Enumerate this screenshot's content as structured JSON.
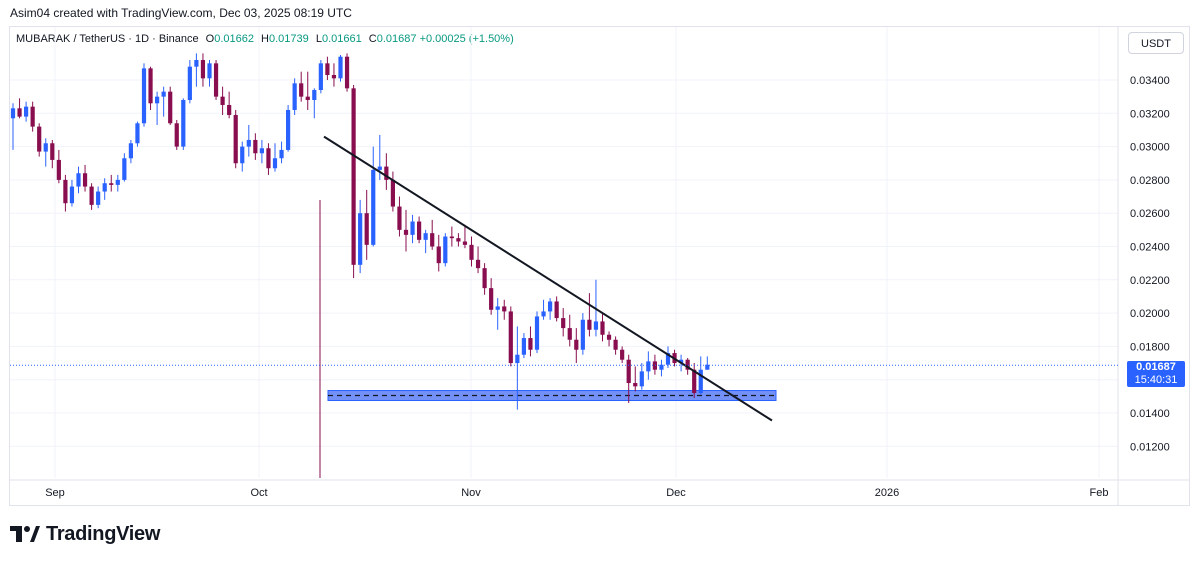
{
  "attribution": "Asim04 created with TradingView.com, Dec 03, 2025 08:19 UTC",
  "legend": {
    "symbol": "MUBARAK / TetherUS · 1D · Binance",
    "o_label": "O",
    "o_value": "0.01662",
    "h_label": "H",
    "h_value": "0.01739",
    "l_label": "L",
    "l_value": "0.01661",
    "c_label": "C",
    "c_value": "0.01687",
    "change": "+0.00025 (+1.50%)"
  },
  "currency_button": "USDT",
  "price_tag": {
    "price": "0.01687",
    "countdown": "15:40:31"
  },
  "logo_text": "TradingView",
  "colors": {
    "up": "#2962ff",
    "down": "#880e4f",
    "tag": "#2962ff",
    "support": "#5b7cf5"
  },
  "chart_data": {
    "type": "candlestick",
    "y_axis_ticks": [
      "0.03400",
      "0.03200",
      "0.03000",
      "0.02800",
      "0.02600",
      "0.02400",
      "0.02200",
      "0.02000",
      "0.01800",
      "0.01600",
      "0.01400",
      "0.01200"
    ],
    "x_axis_labels": [
      "Sep",
      "Oct",
      "Nov",
      "Dec",
      "2026",
      "Feb"
    ],
    "last_price": 0.01687,
    "support_zone": [
      0.01475,
      0.01535
    ],
    "support_line": 0.01505,
    "trendline": {
      "from": [
        0.0306
      ],
      "to": [
        0.01355
      ]
    },
    "candles": [
      [
        0.0317,
        0.0326,
        0.0298,
        0.0323
      ],
      [
        0.0323,
        0.0329,
        0.0317,
        0.0318
      ],
      [
        0.0318,
        0.0327,
        0.0315,
        0.0324
      ],
      [
        0.0324,
        0.0327,
        0.0309,
        0.0312
      ],
      [
        0.0312,
        0.0314,
        0.0294,
        0.0297
      ],
      [
        0.0297,
        0.0305,
        0.0288,
        0.0302
      ],
      [
        0.0302,
        0.0304,
        0.0287,
        0.0292
      ],
      [
        0.0292,
        0.0298,
        0.0278,
        0.028
      ],
      [
        0.028,
        0.0283,
        0.0261,
        0.0266
      ],
      [
        0.0266,
        0.028,
        0.0264,
        0.0276
      ],
      [
        0.0276,
        0.0288,
        0.0272,
        0.0284
      ],
      [
        0.0284,
        0.0289,
        0.0273,
        0.0276
      ],
      [
        0.0276,
        0.0278,
        0.0262,
        0.0265
      ],
      [
        0.0265,
        0.0276,
        0.0263,
        0.0273
      ],
      [
        0.0273,
        0.0281,
        0.0268,
        0.0278
      ],
      [
        0.0278,
        0.0283,
        0.0273,
        0.0277
      ],
      [
        0.0277,
        0.0283,
        0.0273,
        0.028
      ],
      [
        0.028,
        0.0296,
        0.0279,
        0.0293
      ],
      [
        0.0293,
        0.0304,
        0.029,
        0.0302
      ],
      [
        0.0302,
        0.0315,
        0.03,
        0.0314
      ],
      [
        0.0314,
        0.035,
        0.0312,
        0.0347
      ],
      [
        0.0347,
        0.0348,
        0.0322,
        0.0326
      ],
      [
        0.0326,
        0.0333,
        0.0313,
        0.033
      ],
      [
        0.033,
        0.0336,
        0.0318,
        0.0333
      ],
      [
        0.0333,
        0.0336,
        0.0313,
        0.0314
      ],
      [
        0.0314,
        0.0316,
        0.0298,
        0.03
      ],
      [
        0.03,
        0.0329,
        0.0298,
        0.0328
      ],
      [
        0.0328,
        0.0352,
        0.0326,
        0.0348
      ],
      [
        0.0348,
        0.0356,
        0.0336,
        0.0352
      ],
      [
        0.0352,
        0.0356,
        0.0336,
        0.0341
      ],
      [
        0.0341,
        0.0352,
        0.0336,
        0.035
      ],
      [
        0.035,
        0.0352,
        0.0328,
        0.033
      ],
      [
        0.033,
        0.0336,
        0.0319,
        0.0325
      ],
      [
        0.0325,
        0.0333,
        0.0317,
        0.0319
      ],
      [
        0.0319,
        0.0322,
        0.0287,
        0.029
      ],
      [
        0.029,
        0.0303,
        0.0285,
        0.03
      ],
      [
        0.03,
        0.0313,
        0.0294,
        0.0304
      ],
      [
        0.0304,
        0.0308,
        0.0292,
        0.0296
      ],
      [
        0.0296,
        0.0304,
        0.029,
        0.0299
      ],
      [
        0.0299,
        0.0302,
        0.0283,
        0.0287
      ],
      [
        0.0287,
        0.0302,
        0.0285,
        0.0293
      ],
      [
        0.0293,
        0.0303,
        0.029,
        0.0298
      ],
      [
        0.0298,
        0.0325,
        0.0297,
        0.0322
      ],
      [
        0.0322,
        0.0341,
        0.0319,
        0.0338
      ],
      [
        0.0338,
        0.0345,
        0.0327,
        0.033
      ],
      [
        0.033,
        0.0345,
        0.0322,
        0.0328
      ],
      [
        0.0328,
        0.0335,
        0.0317,
        0.0334
      ],
      [
        0.0334,
        0.0352,
        0.0332,
        0.035
      ],
      [
        0.035,
        0.0354,
        0.034,
        0.0343
      ],
      [
        0.0343,
        0.035,
        0.0336,
        0.0341
      ],
      [
        0.0341,
        0.0355,
        0.0339,
        0.0354
      ],
      [
        0.0354,
        0.0356,
        0.0333,
        0.0335
      ],
      [
        0.0335,
        0.0337,
        0.0221,
        0.0229
      ],
      [
        0.0229,
        0.0268,
        0.0224,
        0.026
      ],
      [
        0.026,
        0.0274,
        0.0232,
        0.0241
      ],
      [
        0.0241,
        0.03,
        0.024,
        0.0286
      ],
      [
        0.0286,
        0.0307,
        0.028,
        0.0288
      ],
      [
        0.0288,
        0.0296,
        0.0274,
        0.028
      ],
      [
        0.028,
        0.0285,
        0.0261,
        0.0264
      ],
      [
        0.0264,
        0.027,
        0.0246,
        0.025
      ],
      [
        0.025,
        0.0262,
        0.0237,
        0.0247
      ],
      [
        0.0247,
        0.0259,
        0.0242,
        0.0255
      ],
      [
        0.0255,
        0.0258,
        0.0242,
        0.0244
      ],
      [
        0.0244,
        0.025,
        0.0236,
        0.0248
      ],
      [
        0.0248,
        0.0256,
        0.0238,
        0.024
      ],
      [
        0.024,
        0.0247,
        0.0225,
        0.023
      ],
      [
        0.023,
        0.0248,
        0.0228,
        0.0246
      ],
      [
        0.0246,
        0.0252,
        0.024,
        0.0245
      ],
      [
        0.0245,
        0.0248,
        0.024,
        0.0243
      ],
      [
        0.0243,
        0.0253,
        0.0239,
        0.0241
      ],
      [
        0.0241,
        0.0246,
        0.0228,
        0.0232
      ],
      [
        0.0232,
        0.024,
        0.0224,
        0.0227
      ],
      [
        0.0227,
        0.023,
        0.0211,
        0.0215
      ],
      [
        0.0215,
        0.0221,
        0.0199,
        0.0202
      ],
      [
        0.0202,
        0.0209,
        0.019,
        0.0204
      ],
      [
        0.0204,
        0.0208,
        0.0196,
        0.0201
      ],
      [
        0.0201,
        0.0204,
        0.0168,
        0.017
      ],
      [
        0.017,
        0.0192,
        0.0142,
        0.0175
      ],
      [
        0.0175,
        0.0188,
        0.0173,
        0.0185
      ],
      [
        0.0185,
        0.0192,
        0.0174,
        0.0178
      ],
      [
        0.0178,
        0.0201,
        0.0176,
        0.0198
      ],
      [
        0.0198,
        0.0208,
        0.0196,
        0.0201
      ],
      [
        0.0201,
        0.0209,
        0.0196,
        0.0207
      ],
      [
        0.0207,
        0.021,
        0.0195,
        0.0197
      ],
      [
        0.0197,
        0.0203,
        0.0186,
        0.0191
      ],
      [
        0.0191,
        0.0199,
        0.018,
        0.0184
      ],
      [
        0.0184,
        0.0191,
        0.017,
        0.0178
      ],
      [
        0.0178,
        0.02,
        0.0175,
        0.0196
      ],
      [
        0.0196,
        0.0212,
        0.0186,
        0.019
      ],
      [
        0.019,
        0.022,
        0.0186,
        0.0195
      ],
      [
        0.0195,
        0.02,
        0.0183,
        0.0187
      ],
      [
        0.0187,
        0.0189,
        0.018,
        0.0184
      ],
      [
        0.0184,
        0.0186,
        0.0175,
        0.0178
      ],
      [
        0.0178,
        0.018,
        0.017,
        0.0172
      ],
      [
        0.0172,
        0.0175,
        0.0146,
        0.0158
      ],
      [
        0.0158,
        0.0168,
        0.0153,
        0.0156
      ],
      [
        0.0156,
        0.017,
        0.0154,
        0.0165
      ],
      [
        0.0165,
        0.0177,
        0.016,
        0.0171
      ],
      [
        0.0171,
        0.0175,
        0.0163,
        0.0166
      ],
      [
        0.0166,
        0.0172,
        0.0162,
        0.0169
      ],
      [
        0.0169,
        0.018,
        0.0167,
        0.0176
      ],
      [
        0.0176,
        0.0178,
        0.0168,
        0.017
      ],
      [
        0.017,
        0.0175,
        0.0165,
        0.0172
      ],
      [
        0.0172,
        0.0173,
        0.0163,
        0.0166
      ],
      [
        0.0166,
        0.017,
        0.0149,
        0.0152
      ],
      [
        0.0152,
        0.0174,
        0.0151,
        0.0166
      ],
      [
        0.0166,
        0.0174,
        0.0166,
        0.0169
      ]
    ]
  }
}
